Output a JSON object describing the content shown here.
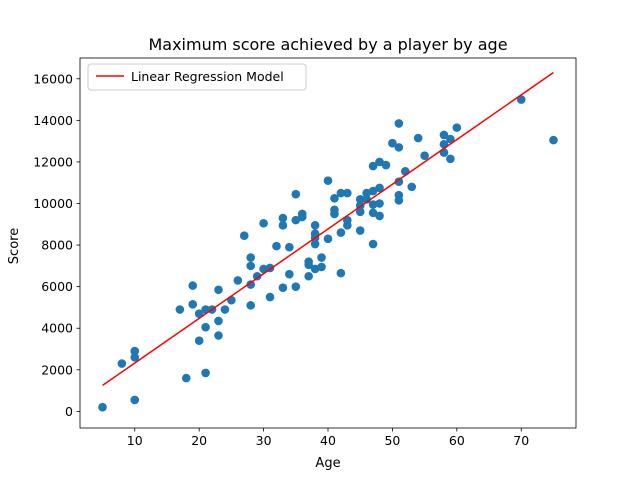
{
  "chart_data": {
    "type": "scatter",
    "title": "Maximum score achieved by a player by age",
    "xlabel": "Age",
    "ylabel": "Score",
    "xlim": [
      1.5,
      78.5
    ],
    "ylim": [
      -800,
      17000
    ],
    "xticks": [
      10,
      20,
      30,
      40,
      50,
      60,
      70
    ],
    "yticks": [
      0,
      2000,
      4000,
      6000,
      8000,
      10000,
      12000,
      14000,
      16000
    ],
    "grid": false,
    "legend_position": "top-left",
    "point_color": "#1f77b4",
    "line_color": "#ff0000",
    "series": [
      {
        "type": "scatter",
        "x": [
          5,
          8,
          10,
          10,
          10,
          17,
          18,
          19,
          19,
          20,
          20,
          21,
          21,
          21,
          22,
          23,
          23,
          23,
          24,
          25,
          26,
          27,
          28,
          28,
          28,
          28,
          29,
          30,
          30,
          31,
          31,
          32,
          33,
          33,
          33,
          34,
          34,
          35,
          35,
          35,
          36,
          36,
          37,
          37,
          37,
          38,
          38,
          38,
          38,
          38,
          39,
          39,
          40,
          40,
          41,
          41,
          41,
          42,
          42,
          42,
          43,
          43,
          43,
          45,
          45,
          45,
          45,
          46,
          46,
          47,
          47,
          47,
          47,
          47,
          48,
          48,
          48,
          48,
          49,
          50,
          51,
          51,
          51,
          51,
          51,
          52,
          53,
          54,
          55,
          58,
          58,
          58,
          59,
          59,
          60,
          70,
          75
        ],
        "y": [
          200,
          2300,
          2900,
          2600,
          550,
          4900,
          1600,
          6050,
          5150,
          4700,
          3400,
          4900,
          4050,
          1850,
          4900,
          5850,
          4350,
          3650,
          4900,
          5350,
          6300,
          8450,
          7400,
          7000,
          6100,
          5100,
          6500,
          9050,
          6850,
          6900,
          5500,
          7950,
          9300,
          8950,
          5950,
          6600,
          7900,
          10450,
          9200,
          6000,
          9500,
          9350,
          7200,
          7050,
          6500,
          8950,
          8550,
          8350,
          8050,
          6850,
          7400,
          6950,
          11100,
          8300,
          9700,
          10250,
          9500,
          10500,
          8600,
          6650,
          10500,
          9200,
          8950,
          10200,
          9900,
          9600,
          8700,
          10500,
          10200,
          11800,
          10600,
          9950,
          9550,
          8050,
          12000,
          10750,
          10000,
          9400,
          11850,
          12900,
          13850,
          12700,
          11050,
          10400,
          10150,
          11550,
          10800,
          13150,
          12300,
          13300,
          12850,
          12450,
          13100,
          12150,
          13650,
          15000,
          13050
        ]
      },
      {
        "type": "line",
        "name": "Linear Regression Model",
        "x": [
          5,
          75
        ],
        "y": [
          1250,
          16300
        ]
      }
    ]
  }
}
